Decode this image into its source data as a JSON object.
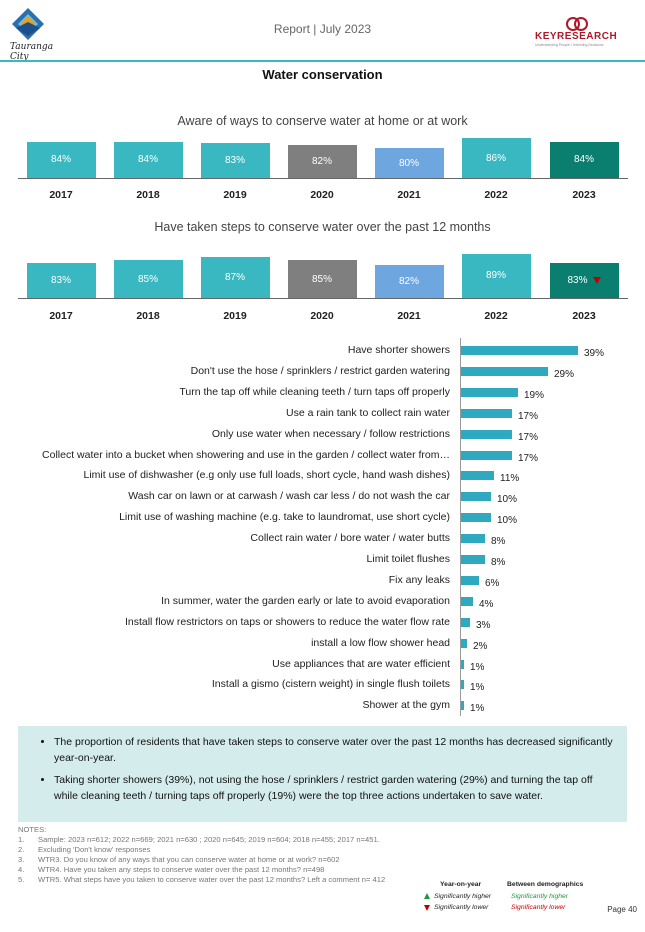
{
  "header": {
    "logo_city": "Tauranga City",
    "report": "Report | July 2023",
    "keyresearch_name": "KEYRESEARCH",
    "keyresearch_tagline": "Understanding People • Informing Decisions"
  },
  "page_title": "Water conservation",
  "colors": {
    "teal": "#3ab8c2",
    "grey2020": "#7f7f7f",
    "blue2021": "#6ea6e0",
    "dark2023": "#0a7f70",
    "hbar": "#2fa9c0",
    "sig_lower": "#c00000",
    "sig_higher": "#1a9a3a"
  },
  "chart_data": [
    {
      "type": "bar",
      "title": "Aware of ways to conserve water at home or at work",
      "categories": [
        "2017",
        "2018",
        "2019",
        "2020",
        "2021",
        "2022",
        "2023"
      ],
      "values": [
        84,
        84,
        83,
        82,
        80,
        86,
        84
      ],
      "labels": [
        "84%",
        "84%",
        "83%",
        "82%",
        "80%",
        "86%",
        "84%"
      ],
      "ylim": [
        0,
        100
      ]
    },
    {
      "type": "bar",
      "title": "Have taken steps to conserve water over the past 12 months",
      "categories": [
        "2017",
        "2018",
        "2019",
        "2020",
        "2021",
        "2022",
        "2023"
      ],
      "values": [
        83,
        85,
        87,
        85,
        82,
        89,
        83
      ],
      "labels": [
        "83%",
        "85%",
        "87%",
        "85%",
        "82%",
        "89%",
        "83%"
      ],
      "ylim": [
        0,
        100
      ],
      "significance_2023": "lower"
    },
    {
      "type": "bar",
      "orientation": "horizontal",
      "categories": [
        "Have shorter showers",
        "Don't use the hose / sprinklers / restrict garden watering",
        "Turn the tap off while cleaning teeth / turn taps off properly",
        "Use a rain tank to collect rain water",
        "Only use water when necessary / follow restrictions",
        "Collect water into a bucket when showering and use in the garden / collect water from…",
        "Limit use of dishwasher (e.g only use full loads, short cycle, hand wash dishes)",
        "Wash car on lawn or at carwash / wash car less / do not wash the car",
        "Limit use of washing machine (e.g. take to laundromat, use short cycle)",
        "Collect rain water / bore water / water butts",
        "Limit toilet flushes",
        "Fix any leaks",
        "In summer, water the garden early or late to avoid evaporation",
        "Install flow restrictors on taps or showers to reduce the water flow rate",
        "install a low flow shower head",
        "Use appliances that are water efficient",
        "Install a gismo (cistern weight) in single flush toilets",
        "Shower at the gym"
      ],
      "values": [
        39,
        29,
        19,
        17,
        17,
        17,
        11,
        10,
        10,
        8,
        8,
        6,
        4,
        3,
        2,
        1,
        1,
        1
      ],
      "labels": [
        "39%",
        "29%",
        "19%",
        "17%",
        "17%",
        "17%",
        "11%",
        "10%",
        "10%",
        "8%",
        "8%",
        "6%",
        "4%",
        "3%",
        "2%",
        "1%",
        "1%",
        "1%"
      ]
    }
  ],
  "summary": [
    "The proportion of residents that have taken steps to conserve water over the past 12 months has decreased significantly year-on-year.",
    "Taking shorter showers (39%), not using the hose / sprinklers / restrict garden watering (29%) and turning the tap off while cleaning teeth / turning taps off properly (19%) were the top three actions undertaken to save water."
  ],
  "notes": {
    "heading": "NOTES:",
    "items": [
      {
        "n": "1.",
        "t": "Sample: 2023 n=612; 2022 n=669; 2021 n=630 ; 2020 n=645; 2019 n=604; 2018 n=455; 2017 n=451."
      },
      {
        "n": "2.",
        "t": "Excluding 'Don't know' responses"
      },
      {
        "n": "3.",
        "t": "WTR3. Do you know of any ways that you can conserve water at home or at work? n=602"
      },
      {
        "n": "4.",
        "t": "WTR4. Have you taken any steps to conserve water over the past 12 months? n=498"
      },
      {
        "n": "5.",
        "t": "WTR5. What steps have you taken to conserve water over the past 12 months? Left a comment n= 412"
      }
    ]
  },
  "legend": {
    "yoy": "Year-on-year",
    "between": "Between demographics",
    "higher": "Significantly higher",
    "lower": "Significantly lower",
    "higher2": "Significantly higher",
    "lower2": "Significantly lower"
  },
  "page_number": "Page 40"
}
